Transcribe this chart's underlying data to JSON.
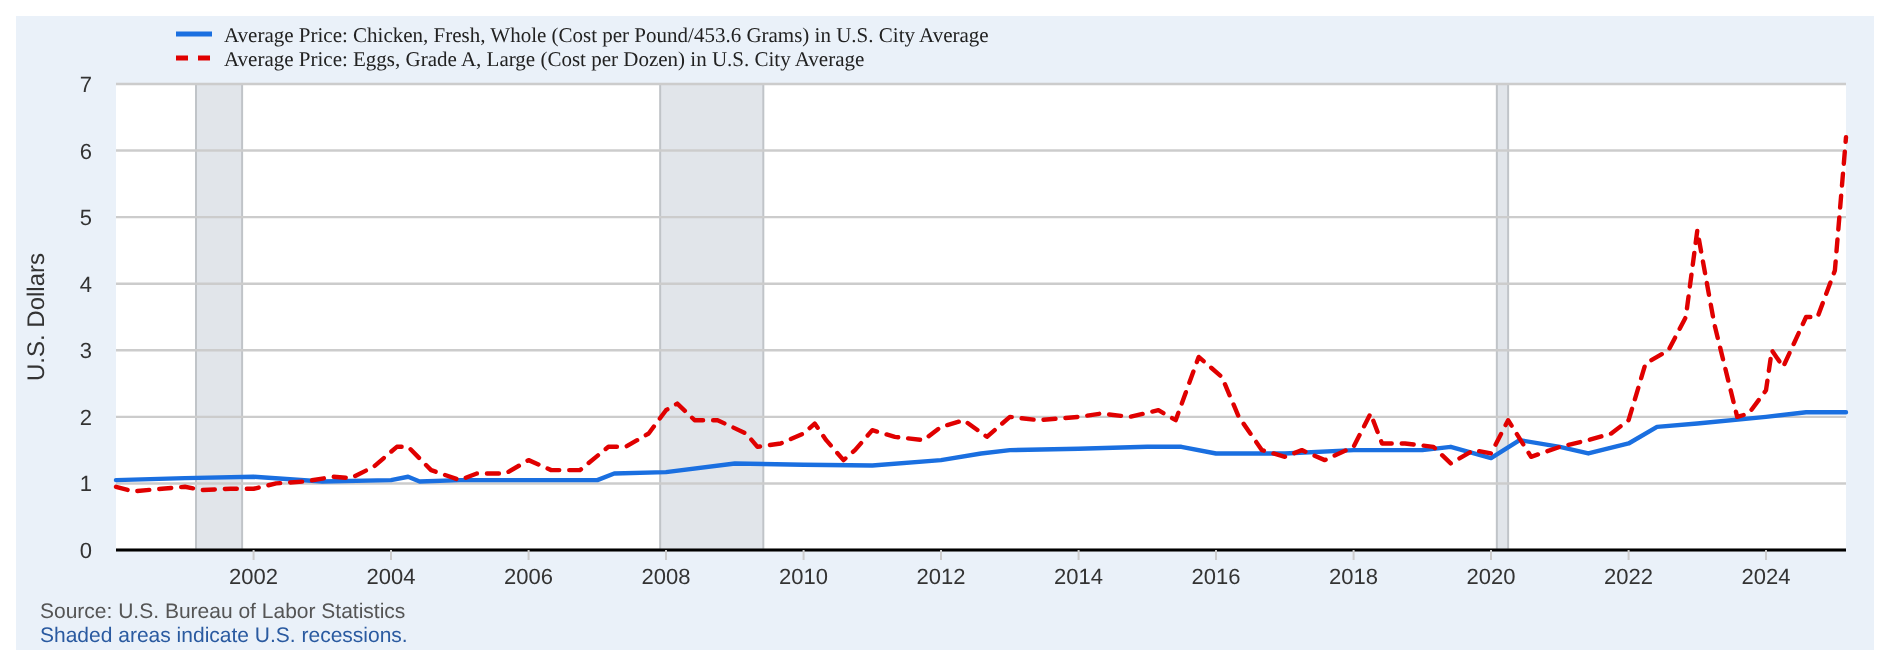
{
  "chart_data": {
    "type": "line",
    "ylabel": "U.S. Dollars",
    "legend": "top left",
    "grid": "y",
    "xlim": [
      "2000-01",
      "2025-03"
    ],
    "ylim": [
      0,
      7
    ],
    "xticks": [
      {
        "value": "2002-01",
        "label": "2002"
      },
      {
        "value": "2004-01",
        "label": "2004"
      },
      {
        "value": "2006-01",
        "label": "2006"
      },
      {
        "value": "2008-01",
        "label": "2008"
      },
      {
        "value": "2010-01",
        "label": "2010"
      },
      {
        "value": "2012-01",
        "label": "2012"
      },
      {
        "value": "2014-01",
        "label": "2014"
      },
      {
        "value": "2016-01",
        "label": "2016"
      },
      {
        "value": "2018-01",
        "label": "2018"
      },
      {
        "value": "2020-01",
        "label": "2020"
      },
      {
        "value": "2022-01",
        "label": "2022"
      },
      {
        "value": "2024-01",
        "label": "2024"
      }
    ],
    "yticks": [
      0,
      1,
      2,
      3,
      4,
      5,
      6,
      7
    ],
    "bands": [
      {
        "axis": "x",
        "from": "2001-03",
        "to": "2001-11",
        "color": "#e1e5ea"
      },
      {
        "axis": "x",
        "from": "2007-12",
        "to": "2009-06",
        "color": "#e1e5ea"
      },
      {
        "axis": "x",
        "from": "2020-02",
        "to": "2020-04",
        "color": "#e1e5ea"
      }
    ],
    "series": [
      {
        "name": "Average Price: Chicken, Fresh, Whole (Cost per Pound/453.6 Grams) in U.S. City Average",
        "color": "#1a6fe0",
        "line_style": "solid",
        "x": [
          "2000-01",
          "2001-01",
          "2002-01",
          "2003-01",
          "2004-01",
          "2004-04",
          "2004-06",
          "2005-01",
          "2006-01",
          "2007-01",
          "2007-04",
          "2008-01",
          "2009-01",
          "2010-01",
          "2011-01",
          "2012-01",
          "2012-08",
          "2013-01",
          "2014-01",
          "2015-01",
          "2015-07",
          "2016-01",
          "2017-01",
          "2018-01",
          "2019-01",
          "2019-06",
          "2020-01",
          "2020-06",
          "2021-01",
          "2021-06",
          "2022-01",
          "2022-06",
          "2023-01",
          "2024-01",
          "2024-08",
          "2025-03"
        ],
        "values": [
          1.05,
          1.08,
          1.1,
          1.03,
          1.05,
          1.1,
          1.03,
          1.05,
          1.05,
          1.05,
          1.15,
          1.17,
          1.3,
          1.28,
          1.27,
          1.35,
          1.45,
          1.5,
          1.52,
          1.55,
          1.55,
          1.45,
          1.45,
          1.5,
          1.5,
          1.55,
          1.38,
          1.65,
          1.55,
          1.45,
          1.6,
          1.85,
          1.9,
          2.0,
          2.07,
          2.07
        ]
      },
      {
        "name": "Average Price: Eggs, Grade A, Large (Cost per Dozen) in U.S. City Average",
        "color": "#e00000",
        "line_style": "dashed",
        "x": [
          "2000-01",
          "2000-04",
          "2000-09",
          "2001-01",
          "2001-04",
          "2001-09",
          "2002-01",
          "2002-05",
          "2002-10",
          "2003-03",
          "2003-06",
          "2003-10",
          "2004-02",
          "2004-04",
          "2004-08",
          "2005-01",
          "2005-04",
          "2005-09",
          "2006-01",
          "2006-05",
          "2006-10",
          "2007-03",
          "2007-06",
          "2007-10",
          "2008-01",
          "2008-03",
          "2008-06",
          "2008-10",
          "2009-03",
          "2009-05",
          "2009-09",
          "2010-01",
          "2010-03",
          "2010-05",
          "2010-08",
          "2010-10",
          "2011-01",
          "2011-05",
          "2011-10",
          "2012-01",
          "2012-05",
          "2012-09",
          "2013-01",
          "2013-06",
          "2014-01",
          "2014-05",
          "2014-10",
          "2015-03",
          "2015-06",
          "2015-10",
          "2016-02",
          "2016-05",
          "2016-09",
          "2017-01",
          "2017-04",
          "2017-08",
          "2018-01",
          "2018-04",
          "2018-06",
          "2018-10",
          "2019-03",
          "2019-06",
          "2019-10",
          "2020-01",
          "2020-04",
          "2020-08",
          "2021-01",
          "2021-06",
          "2021-10",
          "2022-01",
          "2022-04",
          "2022-08",
          "2022-11",
          "2023-01",
          "2023-04",
          "2023-08",
          "2023-10",
          "2024-01",
          "2024-02",
          "2024-04",
          "2024-08",
          "2024-10",
          "2025-01",
          "2025-03"
        ],
        "values": [
          0.95,
          0.88,
          0.92,
          0.95,
          0.9,
          0.92,
          0.92,
          1.0,
          1.03,
          1.1,
          1.08,
          1.25,
          1.55,
          1.55,
          1.2,
          1.05,
          1.15,
          1.15,
          1.35,
          1.2,
          1.2,
          1.55,
          1.55,
          1.75,
          2.1,
          2.2,
          1.95,
          1.95,
          1.75,
          1.55,
          1.6,
          1.75,
          1.9,
          1.65,
          1.35,
          1.5,
          1.8,
          1.7,
          1.65,
          1.85,
          1.95,
          1.7,
          2.0,
          1.95,
          2.0,
          2.05,
          2.0,
          2.1,
          1.95,
          2.9,
          2.6,
          2.0,
          1.5,
          1.4,
          1.5,
          1.35,
          1.55,
          2.05,
          1.6,
          1.6,
          1.55,
          1.3,
          1.5,
          1.45,
          1.95,
          1.4,
          1.55,
          1.65,
          1.75,
          1.95,
          2.8,
          3.0,
          3.5,
          4.8,
          3.4,
          2.0,
          2.05,
          2.4,
          3.0,
          2.75,
          3.5,
          3.5,
          4.2,
          6.2
        ]
      }
    ],
    "annotations": [
      "Source: U.S. Bureau of Labor Statistics",
      "Shaded areas indicate U.S. recessions."
    ]
  }
}
